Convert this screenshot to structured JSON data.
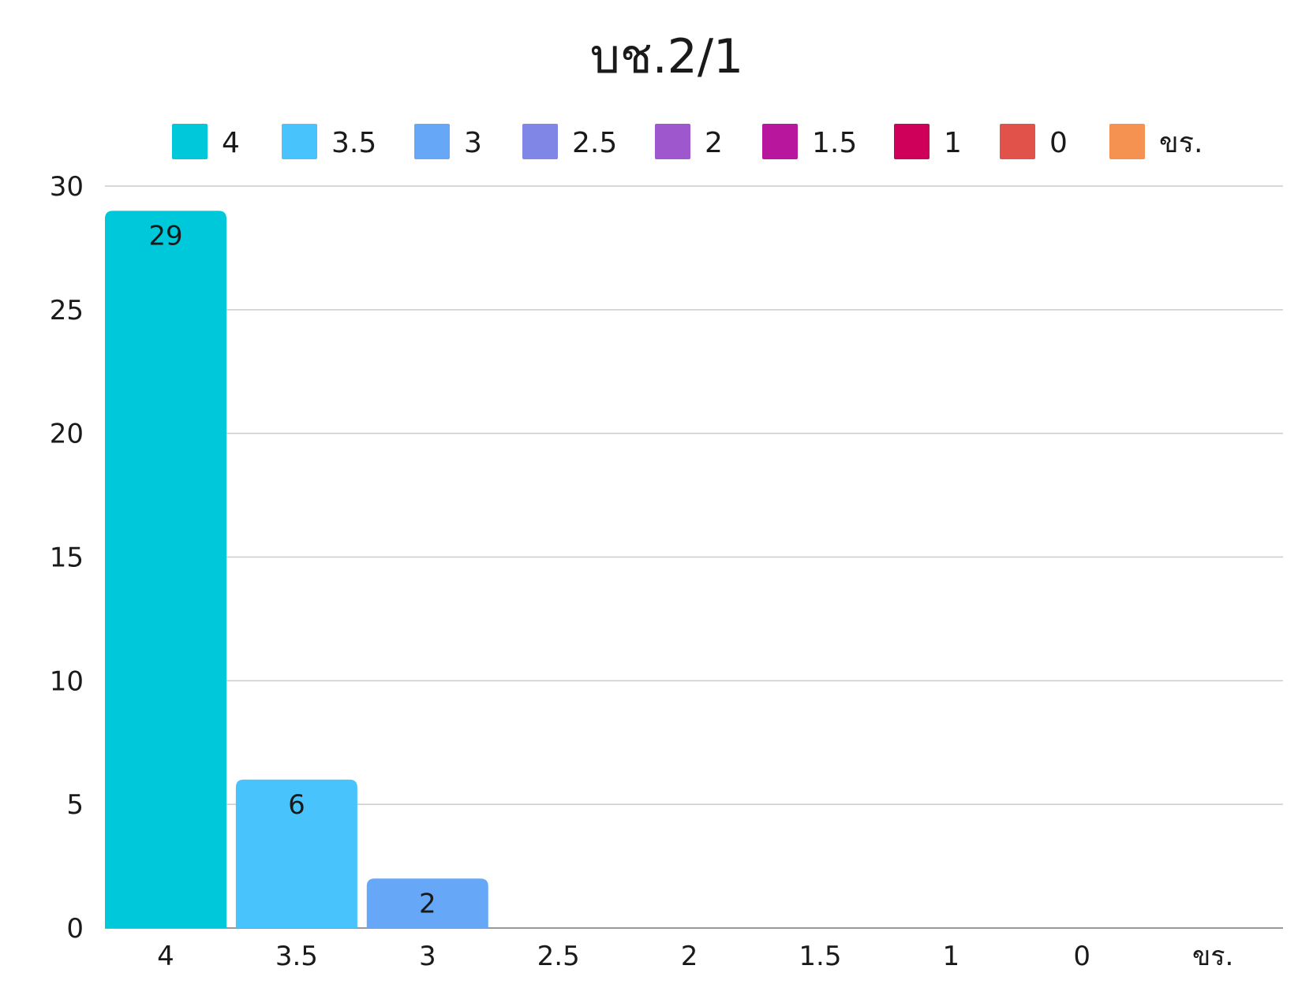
{
  "chart_data": {
    "type": "bar",
    "title": "บช.2/1",
    "xlabel": "",
    "ylabel": "",
    "categories": [
      "4",
      "3.5",
      "3",
      "2.5",
      "2",
      "1.5",
      "1",
      "0",
      "ขร."
    ],
    "values": [
      29,
      6,
      2,
      0,
      0,
      0,
      0,
      0,
      0
    ],
    "data_labels": [
      "29",
      "6",
      "2",
      "",
      "",
      "",
      "",
      "",
      ""
    ],
    "colors": [
      "#00c8db",
      "#48c3fb",
      "#67a7f8",
      "#7f86e6",
      "#9e57cc",
      "#b8169d",
      "#cf0059",
      "#e0524a",
      "#f59252"
    ],
    "ylim": [
      0,
      30
    ],
    "yticks": [
      0,
      5,
      10,
      15,
      20,
      25,
      30
    ],
    "ytick_labels": [
      "0",
      "5",
      "10",
      "15",
      "20",
      "25",
      "30"
    ],
    "grid": true,
    "legend": {
      "position": "top",
      "entries": [
        "4",
        "3.5",
        "3",
        "2.5",
        "2",
        "1.5",
        "1",
        "0",
        "ขร."
      ]
    }
  }
}
